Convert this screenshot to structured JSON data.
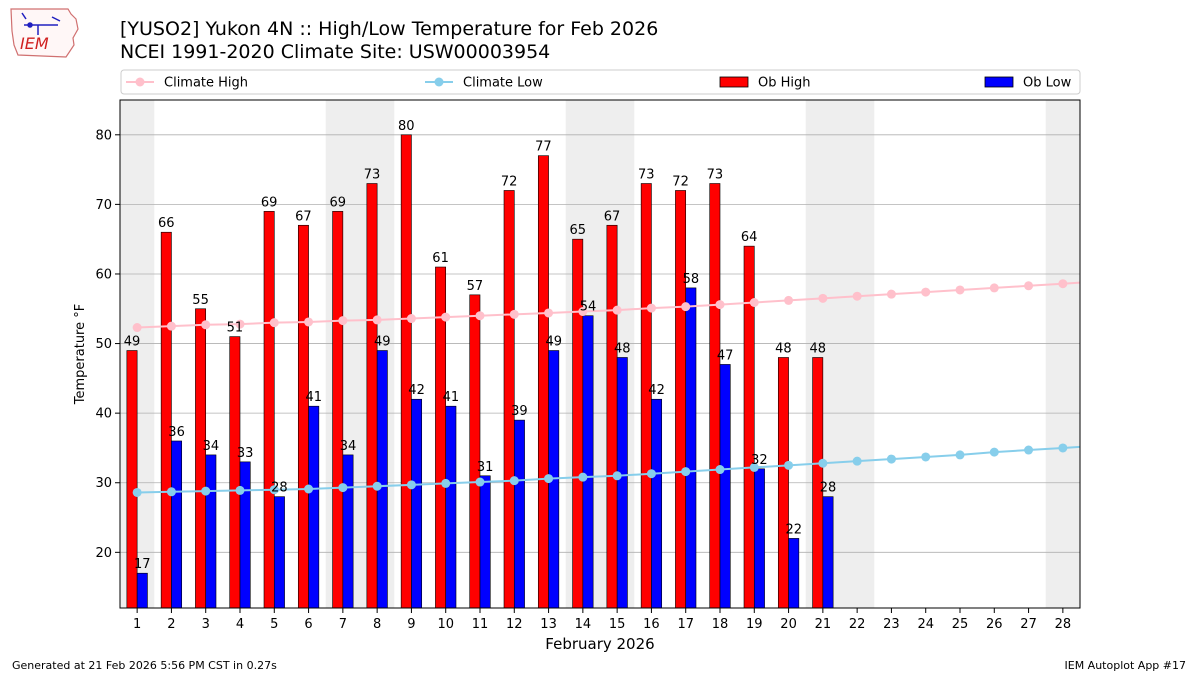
{
  "title": "[YUSO2] Yukon 4N :: High/Low Temperature for Feb 2026",
  "subtitle": "NCEI 1991-2020 Climate Site: USW00003954",
  "logo_text": "IEM",
  "footer_left": "Generated at 21 Feb 2026 5:56 PM CST in 0.27s",
  "footer_right": "IEM Autoplot App #17",
  "colors": {
    "ob_high": "#ff0000",
    "ob_low": "#0000ff",
    "climate_high": "#ffc0cb",
    "climate_low": "#87ceeb",
    "weekend_shade": "#eeeeee"
  },
  "chart_data": {
    "type": "bar",
    "xlabel": "February 2026",
    "ylabel": "Temperature °F",
    "ylim": [
      12,
      85
    ],
    "xlim": [
      0.5,
      28.5
    ],
    "yticks": [
      20,
      30,
      40,
      50,
      60,
      70,
      80
    ],
    "grid": true,
    "legend_placement": "top",
    "categories": [
      "1",
      "2",
      "3",
      "4",
      "5",
      "6",
      "7",
      "8",
      "9",
      "10",
      "11",
      "12",
      "13",
      "14",
      "15",
      "16",
      "17",
      "18",
      "19",
      "20",
      "21",
      "22",
      "23",
      "24",
      "25",
      "26",
      "27",
      "28"
    ],
    "weekend_days": [
      1,
      7,
      8,
      14,
      15,
      21,
      22,
      28
    ],
    "series": [
      {
        "name": "Climate High",
        "kind": "line",
        "values": [
          52.3,
          52.5,
          52.7,
          52.8,
          53.0,
          53.1,
          53.3,
          53.4,
          53.6,
          53.8,
          54.0,
          54.2,
          54.4,
          54.6,
          54.8,
          55.1,
          55.3,
          55.6,
          55.9,
          56.2,
          56.5,
          56.8,
          57.1,
          57.4,
          57.7,
          58.0,
          58.3,
          58.6
        ]
      },
      {
        "name": "Climate Low",
        "kind": "line",
        "values": [
          28.6,
          28.7,
          28.8,
          28.9,
          29.0,
          29.1,
          29.3,
          29.5,
          29.7,
          29.9,
          30.1,
          30.3,
          30.6,
          30.8,
          31.0,
          31.3,
          31.6,
          31.9,
          32.2,
          32.5,
          32.8,
          33.1,
          33.4,
          33.7,
          34.0,
          34.4,
          34.7,
          35.0
        ]
      },
      {
        "name": "Ob High",
        "kind": "bar",
        "values": [
          49,
          66,
          55,
          51,
          69,
          67,
          69,
          73,
          80,
          61,
          57,
          72,
          77,
          65,
          67,
          73,
          72,
          73,
          64,
          48,
          48,
          null,
          null,
          null,
          null,
          null,
          null,
          null
        ]
      },
      {
        "name": "Ob Low",
        "kind": "bar",
        "values": [
          17,
          36,
          34,
          33,
          28,
          41,
          34,
          49,
          42,
          41,
          31,
          39,
          49,
          54,
          48,
          42,
          58,
          47,
          32,
          22,
          28,
          null,
          null,
          null,
          null,
          null,
          null,
          null
        ]
      }
    ]
  }
}
